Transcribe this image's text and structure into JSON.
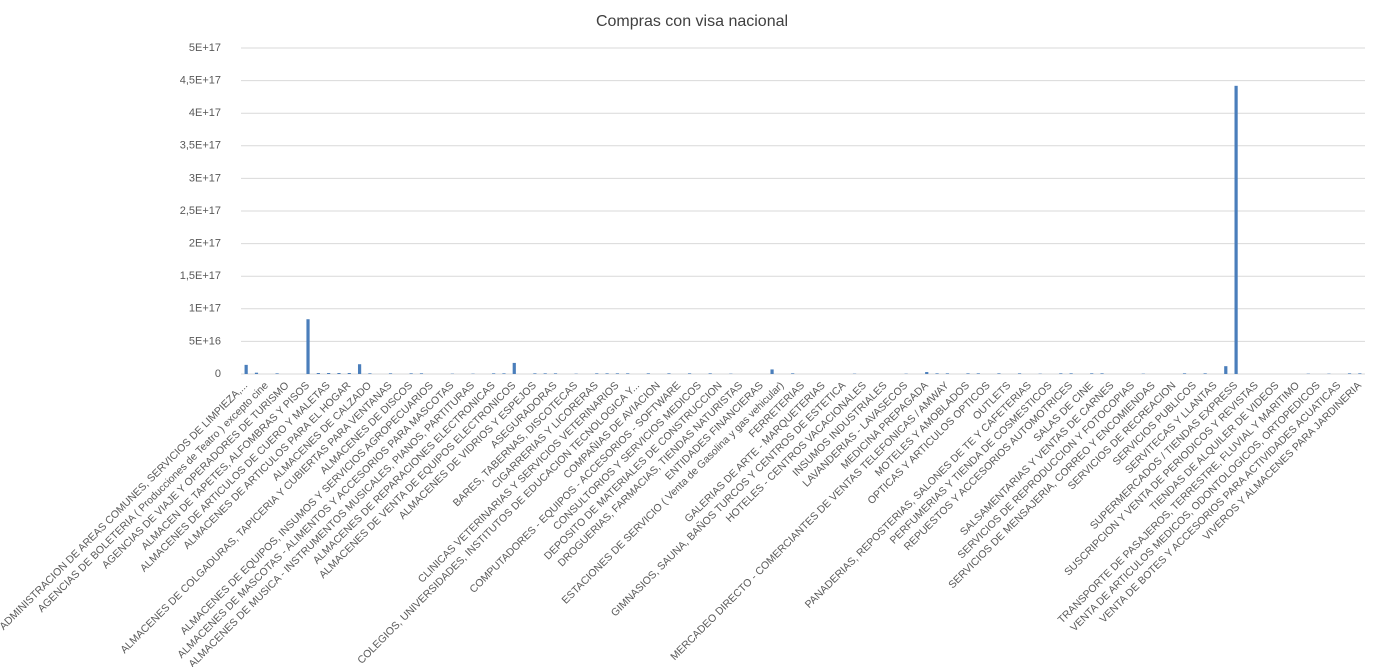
{
  "chart_data": {
    "type": "bar",
    "title": "Compras con visa nacional",
    "categories": [
      "ADMINISTRACION DE AREAS COMUNES, SERVICIOS DE LIMPIEZA,...",
      null,
      "AGENCIAS DE BOLETERIA ( Producciones de Teatro ) excepto cine",
      null,
      "AGENCIAS DE VIAJE Y OPERADORES DE TURISMO",
      null,
      "ALMACEN DE TAPETES, ALFOMBRAS Y PISOS",
      null,
      "ALMACENES DE ARTICULOS DE CUERO Y MALETAS",
      null,
      "ALMACENES DE ARTICULOS PARA EL HOGAR",
      null,
      "ALMACENES DE CALZADO",
      null,
      "ALMACENES DE COLGADURAS, TAPICERIA Y CUBIERTAS PARA VENTANAS",
      null,
      "ALMACENES DE DISCOS",
      null,
      "ALMACENES DE EQUIPOS, INSUMOS Y SERVICIOS AGROPECUARIOS",
      null,
      "ALMACENES DE MASCOTAS - ALIMENTOS Y ACCESORIOS PARA MASCOTAS",
      null,
      "ALMACENES DE MUSICA - INSTRUMENTOS MUSICALES, PIANOS, PARTITURAS",
      null,
      "ALMACENES DE REPARACIONES ELECTRONICAS",
      null,
      "ALMACENES DE VENTA DE EQUIPOS ELECTRONICOS",
      null,
      "ALMACENES DE VIDRIOS Y ESPEJOS",
      null,
      "ASEGURADORAS",
      null,
      "BARES, TABERNAS, DISCOTECAS",
      null,
      "CIGARRERIAS Y LICORERAS",
      null,
      "CLINICAS VETERINARIAS Y SERVICIOS VETERINARIOS",
      null,
      "COLEGIOS, UNIVERSIDADES, INSTITUTOS DE EDUCACION TECNOLOGICA Y...",
      null,
      "COMPAÑIAS DE AVIACION",
      null,
      "COMPUTADORES - EQUIPOS - ACCESORIOS - SOFTWARE",
      null,
      "CONSULTORIOS Y SERVICIOS MEDICOS",
      null,
      "DEPOSITO DE MATERIALES DE CONSTRUCCION",
      null,
      "DROGUERIAS, FARMACIAS, TIENDAS NATURISTAS",
      null,
      "ENTIDADES FINANCIERAS",
      null,
      "ESTACIONES DE SERVICIO ( Venta de Gasolina y gas vehicular)",
      null,
      "FERRETERIAS",
      null,
      "GALERIAS DE ARTE - MARQUETERIAS",
      null,
      "GIMNASIOS, SAUNA, BAÑOS TURCOS Y CENTROS DE ESTETICA",
      null,
      "HOTELES - CENTROS VACACIONALES",
      null,
      "INSUMOS INDUSTRIALES",
      null,
      "LAVANDERIAS - LAVASECOS",
      null,
      "MEDICINA PREPAGADA",
      null,
      "MERCADEO DIRECTO - COMERCIANTES DE VENTAS TELEFONICAS / AMWAY",
      null,
      "MOTELES Y AMOBLADOS",
      null,
      "OPTICAS Y ARTICULOS OPTICOS",
      null,
      "OUTLETS",
      null,
      "PANADERIAS, REPOSTERIAS, SALONES DE TE Y CAFETERIAS",
      null,
      "PERFUMERIAS Y TIENDA DE COSMESTICOS",
      null,
      "REPUESTOS Y ACCESORIOS AUTOMOTRICES",
      null,
      "SALAS DE CINE",
      null,
      "SALSAMENTARIAS Y VENTAS DE CARNES",
      null,
      "SERVICIOS DE REPRODUCCION Y FOTOCOPIAS",
      null,
      "SERVICIOS DE MENSAJERIA, CORREO Y ENCOMIENDAS",
      null,
      "SERVICIOS DE RECREACION",
      null,
      "SERVICIOS PUBLICOS",
      null,
      "SERVITECAS Y LLANTAS",
      null,
      "SUPERMERCADOS / TIENDAS EXPRESS",
      null,
      "SUSCRIPCION Y VENTA DE PERIODICOS Y REVISTAS",
      null,
      "TIENDAS DE ALQUILER DE VIDEOS",
      null,
      "TRANSPORTE DE PASAJEROS, TERRESTRE, FLUVIAL Y MARITIMO",
      null,
      "VENTA DE ARTICULOS MEDICOS, ODONTOLOGICOS, ORTOPEDICOS",
      null,
      "VENTA DE BOTES Y ACCESORIOS PARA ACTIVIDADES ACUATICAS",
      null,
      "VIVEROS Y ALMACENES PARA JARDINERIA"
    ],
    "values": [
      1.4e+16,
      2000000000000000.0,
      0,
      1000000000000000.0,
      0,
      0,
      8.4e+16,
      1500000000000000.0,
      1500000000000000.0,
      1500000000000000.0,
      1500000000000000.0,
      1.5e+16,
      1000000000000000.0,
      0,
      1000000000000000.0,
      0,
      1000000000000000.0,
      1000000000000000.0,
      0,
      0,
      500000000000000.0,
      0,
      500000000000000.0,
      0,
      1000000000000000.0,
      1000000000000000.0,
      1.7e+16,
      0,
      1000000000000000.0,
      1000000000000000.0,
      1000000000000000.0,
      0,
      500000000000000.0,
      0,
      1000000000000000.0,
      1000000000000000.0,
      1000000000000000.0,
      1000000000000000.0,
      0,
      1000000000000000.0,
      0,
      1000000000000000.0,
      0,
      1000000000000000.0,
      0,
      1000000000000000.0,
      0,
      500000000000000.0,
      0,
      0,
      0,
      7000000000000000.0,
      0,
      1000000000000000.0,
      0,
      0,
      0,
      0,
      0,
      500000000000000.0,
      0,
      0,
      0,
      0,
      500000000000000.0,
      0,
      3000000000000000.0,
      1000000000000000.0,
      1000000000000000.0,
      0,
      1000000000000000.0,
      1000000000000000.0,
      0,
      1000000000000000.0,
      0,
      1000000000000000.0,
      0,
      500000000000000.0,
      0,
      1000000000000000.0,
      1000000000000000.0,
      0,
      1000000000000000.0,
      1000000000000000.0,
      0,
      0,
      0,
      500000000000000.0,
      0,
      0,
      0,
      1000000000000000.0,
      0,
      1000000000000000.0,
      0,
      1.2e+16,
      4.42e+17,
      0,
      0,
      0,
      0,
      0,
      0,
      500000000000000.0,
      0,
      500000000000000.0,
      0,
      1000000000000000.0,
      1000000000000000.0
    ],
    "color": "#4a7ebb",
    "ylim": [
      0,
      5e+17
    ],
    "yticks": [
      0,
      {
        "value": 5e+16,
        "label": "5E+16"
      },
      {
        "value": 1e+17,
        "label": "1E+17"
      },
      {
        "value": 1.5e+17,
        "label": "1,5E+17"
      },
      {
        "value": 2e+17,
        "label": "2E+17"
      },
      {
        "value": 2.5e+17,
        "label": "2,5E+17"
      },
      {
        "value": 3e+17,
        "label": "3E+17"
      },
      {
        "value": 3.5e+17,
        "label": "3,5E+17"
      },
      {
        "value": 4e+17,
        "label": "4E+17"
      },
      {
        "value": 4.5e+17,
        "label": "4,5E+17"
      },
      {
        "value": 5e+17,
        "label": "5E+17"
      }
    ],
    "grid": true
  }
}
